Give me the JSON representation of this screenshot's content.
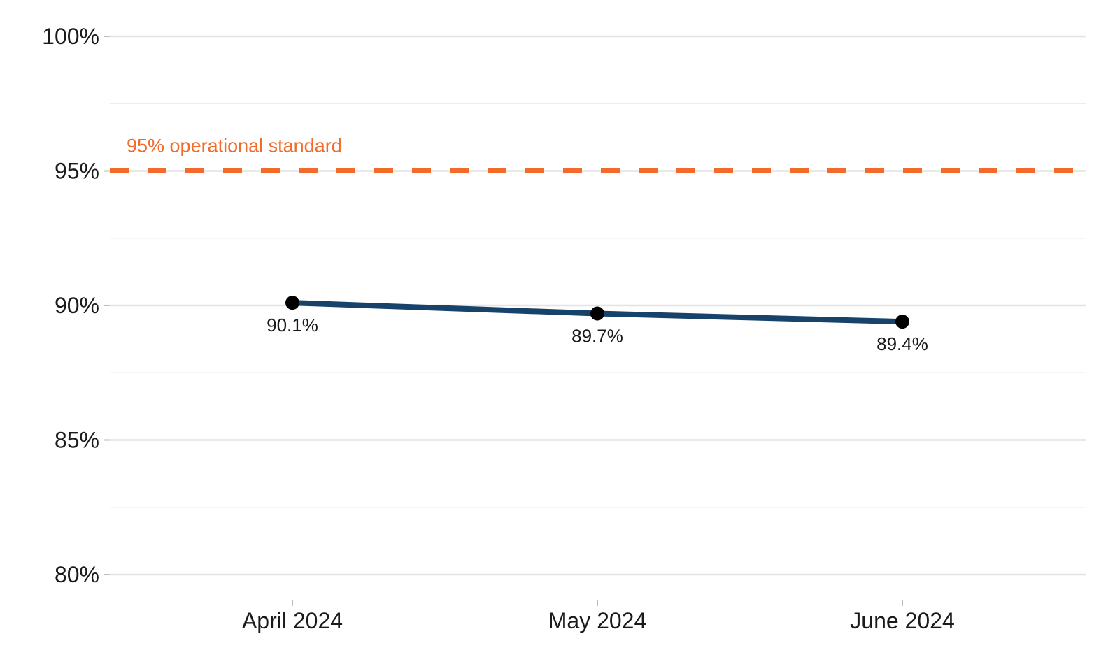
{
  "chart_data": {
    "type": "line",
    "categories": [
      "April 2024",
      "May 2024",
      "June 2024"
    ],
    "series": [
      {
        "values": [
          90.1,
          89.7,
          89.4
        ],
        "labels": [
          "90.1%",
          "89.7%",
          "89.4%"
        ],
        "color": "#17436b"
      }
    ],
    "ylim": [
      80,
      100
    ],
    "y_ticks": [
      80,
      85,
      90,
      95,
      100
    ],
    "y_tick_labels": [
      "80%",
      "85%",
      "90%",
      "95%",
      "100%"
    ],
    "title": "",
    "xlabel": "",
    "ylabel": "",
    "grid": true,
    "reference_line": {
      "value": 95,
      "label": "95% operational standard",
      "color": "#f26b2a",
      "style": "dashed"
    }
  }
}
